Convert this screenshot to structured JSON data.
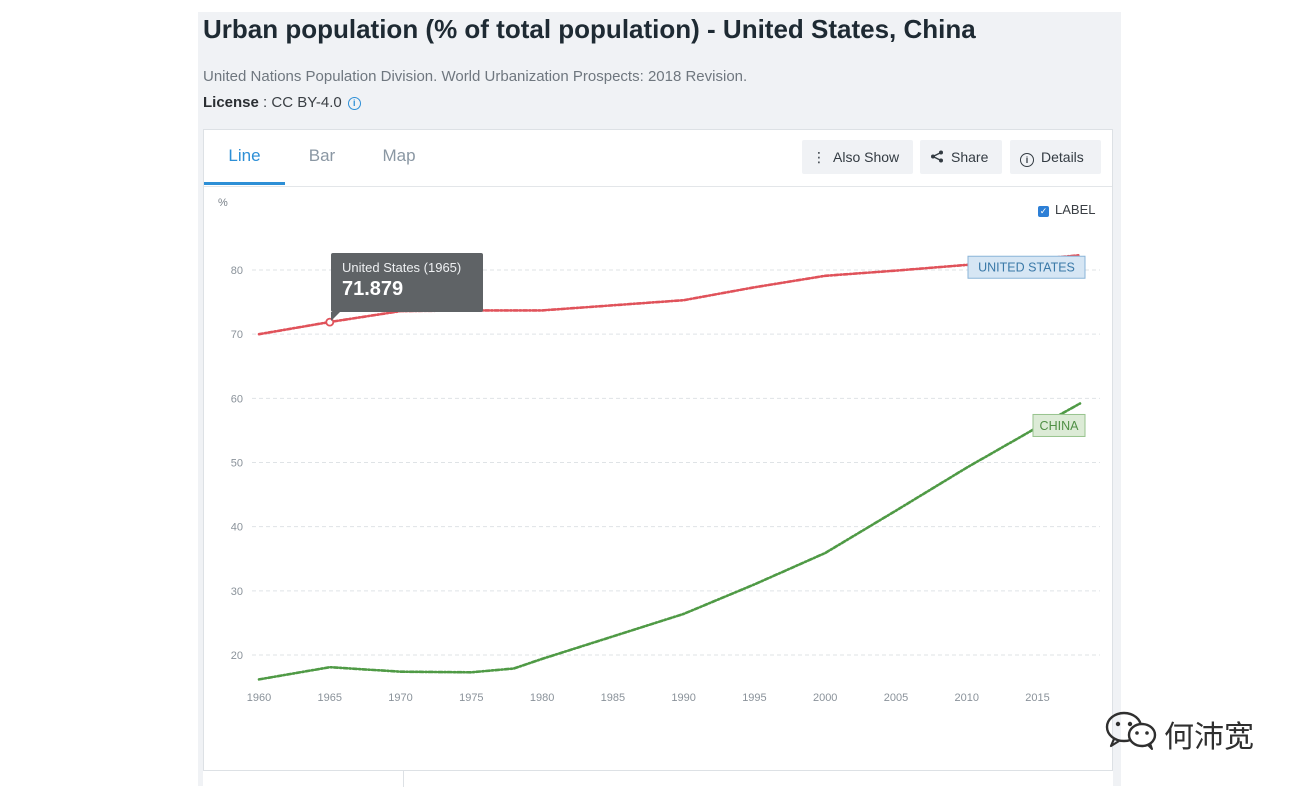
{
  "header": {
    "title": "Urban population (% of total population) - United States, China",
    "source": "United Nations Population Division. World Urbanization Prospects: 2018 Revision.",
    "license_label": "License",
    "license_sep": " : ",
    "license_value": "CC BY-4.0",
    "info_icon": "i"
  },
  "tabs": [
    {
      "label": "Line",
      "active": true
    },
    {
      "label": "Bar",
      "active": false
    },
    {
      "label": "Map",
      "active": false
    }
  ],
  "toolbar": {
    "also_show_label": "Also Show",
    "share_label": "Share",
    "details_label": "Details",
    "details_icon": "i"
  },
  "label_toggle": {
    "label": "LABEL",
    "checked": true
  },
  "tooltip": {
    "title": "United States (1965)",
    "value": "71.879"
  },
  "watermark": {
    "text": "何沛宽",
    "icon": "wechat-icon"
  },
  "colors": {
    "accent": "#2d8fd6",
    "us": "#e0525a",
    "china": "#4f9a45"
  },
  "chart_data": {
    "type": "line",
    "ylabel": "%",
    "x_ticks": [
      1960,
      1965,
      1970,
      1975,
      1980,
      1985,
      1990,
      1995,
      2000,
      2005,
      2010,
      2015
    ],
    "y_ticks": [
      20,
      30,
      40,
      50,
      60,
      70,
      80
    ],
    "xlim": [
      1960,
      2018
    ],
    "ylim": [
      16,
      89
    ],
    "grid": true,
    "series": [
      {
        "name": "UNITED STATES",
        "color": "#e0525a",
        "x": [
          1960,
          1965,
          1970,
          1975,
          1980,
          1985,
          1990,
          1995,
          2000,
          2005,
          2010,
          2015,
          2018
        ],
        "y": [
          70.0,
          71.9,
          73.6,
          73.7,
          73.7,
          74.5,
          75.3,
          77.3,
          79.1,
          79.9,
          80.8,
          81.7,
          82.3
        ]
      },
      {
        "name": "CHINA",
        "color": "#4f9a45",
        "x": [
          1960,
          1965,
          1970,
          1975,
          1978,
          1980,
          1985,
          1990,
          1995,
          2000,
          2005,
          2010,
          2015,
          2018
        ],
        "y": [
          16.2,
          18.1,
          17.4,
          17.3,
          17.9,
          19.4,
          22.9,
          26.4,
          31.0,
          35.9,
          42.5,
          49.2,
          55.5,
          59.2
        ]
      }
    ],
    "highlight": {
      "series": "UNITED STATES",
      "x": 1965,
      "y": 71.879
    }
  }
}
